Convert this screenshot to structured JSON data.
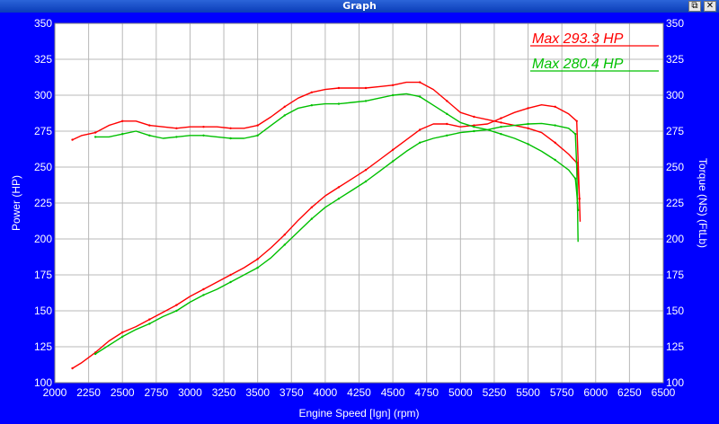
{
  "window": {
    "title": "Graph",
    "restore_icon": "restore-icon",
    "close_icon": "close-icon",
    "restore_glyph": "⧉",
    "close_glyph": "✕"
  },
  "chart_data": {
    "type": "line",
    "title": "",
    "xlabel": "Engine Speed [Ign] (rpm)",
    "ylabel": "Power (HP)",
    "ylabel_right": "Torque (NS) (FtLb)",
    "xlim": [
      2000,
      6500
    ],
    "ylim": [
      100,
      350
    ],
    "x_ticks": [
      2000,
      2250,
      2500,
      2750,
      3000,
      3250,
      3500,
      3750,
      4000,
      4250,
      4500,
      4750,
      5000,
      5250,
      5500,
      5750,
      6000,
      6250,
      6500
    ],
    "y_ticks": [
      100,
      125,
      150,
      175,
      200,
      225,
      250,
      275,
      300,
      325,
      350
    ],
    "grid": true,
    "colors": {
      "background": "#0000ff",
      "plot_area": "#ffffff",
      "grid": "#b8b8b8",
      "run1": "#ff0000",
      "run2": "#00c000"
    },
    "legend": [
      {
        "text": "Max 293.3 HP",
        "color": "#ff0000"
      },
      {
        "text": "Max 280.4 HP",
        "color": "#00c000"
      }
    ],
    "series": [
      {
        "color": "#ff0000",
        "kind": "power",
        "points": [
          [
            2130,
            110
          ],
          [
            2200,
            114
          ],
          [
            2300,
            121
          ],
          [
            2400,
            129
          ],
          [
            2500,
            135
          ],
          [
            2600,
            139
          ],
          [
            2700,
            144
          ],
          [
            2800,
            149
          ],
          [
            2900,
            154
          ],
          [
            3000,
            160
          ],
          [
            3100,
            165
          ],
          [
            3200,
            170
          ],
          [
            3300,
            175
          ],
          [
            3400,
            180
          ],
          [
            3500,
            186
          ],
          [
            3600,
            194
          ],
          [
            3700,
            203
          ],
          [
            3800,
            213
          ],
          [
            3900,
            222
          ],
          [
            4000,
            230
          ],
          [
            4100,
            236
          ],
          [
            4200,
            242
          ],
          [
            4300,
            248
          ],
          [
            4400,
            255
          ],
          [
            4500,
            262
          ],
          [
            4600,
            269
          ],
          [
            4700,
            276
          ],
          [
            4800,
            280
          ],
          [
            4900,
            280
          ],
          [
            5000,
            278
          ],
          [
            5100,
            279
          ],
          [
            5200,
            280
          ],
          [
            5300,
            284
          ],
          [
            5400,
            288
          ],
          [
            5500,
            291
          ],
          [
            5600,
            293.3
          ],
          [
            5700,
            292
          ],
          [
            5800,
            287
          ],
          [
            5860,
            282
          ],
          [
            5870,
            255
          ],
          [
            5880,
            228
          ],
          [
            5885,
            212
          ]
        ]
      },
      {
        "color": "#ff0000",
        "kind": "torque",
        "points": [
          [
            2130,
            269
          ],
          [
            2200,
            272
          ],
          [
            2300,
            274
          ],
          [
            2400,
            279
          ],
          [
            2500,
            282
          ],
          [
            2600,
            282
          ],
          [
            2700,
            279
          ],
          [
            2800,
            278
          ],
          [
            2900,
            277
          ],
          [
            3000,
            278
          ],
          [
            3100,
            278
          ],
          [
            3200,
            278
          ],
          [
            3300,
            277
          ],
          [
            3400,
            277
          ],
          [
            3500,
            279
          ],
          [
            3600,
            285
          ],
          [
            3700,
            292
          ],
          [
            3800,
            298
          ],
          [
            3900,
            302
          ],
          [
            4000,
            304
          ],
          [
            4100,
            305
          ],
          [
            4200,
            305
          ],
          [
            4300,
            305
          ],
          [
            4400,
            306
          ],
          [
            4500,
            307
          ],
          [
            4600,
            309
          ],
          [
            4700,
            309
          ],
          [
            4800,
            304
          ],
          [
            4900,
            296
          ],
          [
            5000,
            288
          ],
          [
            5100,
            285
          ],
          [
            5200,
            283
          ],
          [
            5300,
            281
          ],
          [
            5400,
            279
          ],
          [
            5500,
            277
          ],
          [
            5600,
            274
          ],
          [
            5700,
            267
          ],
          [
            5800,
            259
          ],
          [
            5860,
            253
          ],
          [
            5870,
            245
          ],
          [
            5880,
            228
          ]
        ]
      },
      {
        "color": "#00c000",
        "kind": "power",
        "points": [
          [
            2300,
            120
          ],
          [
            2400,
            126
          ],
          [
            2500,
            132
          ],
          [
            2600,
            137
          ],
          [
            2700,
            141
          ],
          [
            2800,
            146
          ],
          [
            2900,
            150
          ],
          [
            3000,
            156
          ],
          [
            3100,
            161
          ],
          [
            3200,
            165
          ],
          [
            3300,
            170
          ],
          [
            3400,
            175
          ],
          [
            3500,
            180
          ],
          [
            3600,
            187
          ],
          [
            3700,
            196
          ],
          [
            3800,
            205
          ],
          [
            3900,
            214
          ],
          [
            4000,
            222
          ],
          [
            4100,
            228
          ],
          [
            4200,
            234
          ],
          [
            4300,
            240
          ],
          [
            4400,
            247
          ],
          [
            4500,
            254
          ],
          [
            4600,
            261
          ],
          [
            4700,
            267
          ],
          [
            4800,
            270
          ],
          [
            4900,
            272
          ],
          [
            5000,
            274
          ],
          [
            5100,
            275
          ],
          [
            5200,
            276
          ],
          [
            5300,
            278
          ],
          [
            5400,
            279
          ],
          [
            5500,
            280
          ],
          [
            5600,
            280.4
          ],
          [
            5700,
            279
          ],
          [
            5800,
            277
          ],
          [
            5850,
            273
          ],
          [
            5860,
            250
          ],
          [
            5865,
            225
          ],
          [
            5870,
            198
          ]
        ]
      },
      {
        "color": "#00c000",
        "kind": "torque",
        "points": [
          [
            2300,
            271
          ],
          [
            2400,
            271
          ],
          [
            2500,
            273
          ],
          [
            2600,
            275
          ],
          [
            2700,
            272
          ],
          [
            2800,
            270
          ],
          [
            2900,
            271
          ],
          [
            3000,
            272
          ],
          [
            3100,
            272
          ],
          [
            3200,
            271
          ],
          [
            3300,
            270
          ],
          [
            3400,
            270
          ],
          [
            3500,
            272
          ],
          [
            3600,
            279
          ],
          [
            3700,
            286
          ],
          [
            3800,
            291
          ],
          [
            3900,
            293
          ],
          [
            4000,
            294
          ],
          [
            4100,
            294
          ],
          [
            4200,
            295
          ],
          [
            4300,
            296
          ],
          [
            4400,
            298
          ],
          [
            4500,
            300
          ],
          [
            4600,
            301
          ],
          [
            4700,
            299
          ],
          [
            4800,
            293
          ],
          [
            4900,
            287
          ],
          [
            5000,
            281
          ],
          [
            5100,
            278
          ],
          [
            5200,
            276
          ],
          [
            5300,
            273
          ],
          [
            5400,
            270
          ],
          [
            5500,
            266
          ],
          [
            5600,
            261
          ],
          [
            5700,
            255
          ],
          [
            5800,
            248
          ],
          [
            5850,
            242
          ],
          [
            5860,
            232
          ],
          [
            5870,
            220
          ]
        ]
      }
    ]
  }
}
